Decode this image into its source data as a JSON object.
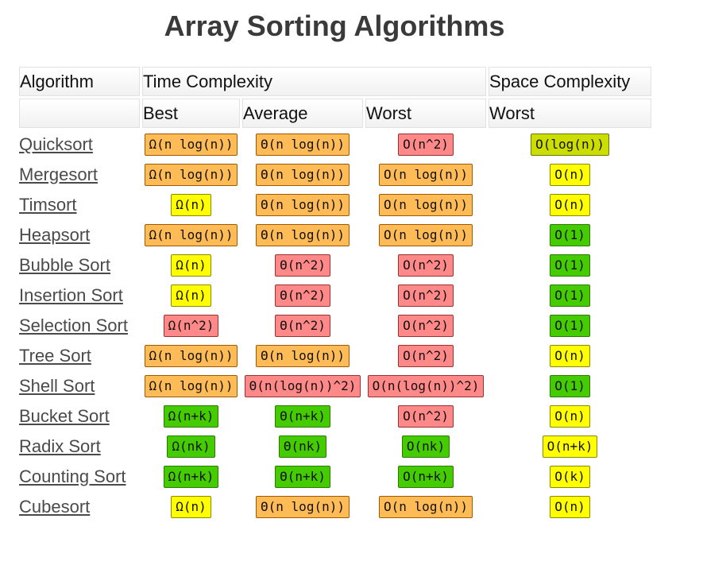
{
  "title": "Array Sorting Algorithms",
  "headers": {
    "algorithm": "Algorithm",
    "time_complexity": "Time Complexity",
    "space_complexity": "Space Complexity",
    "best": "Best",
    "average": "Average",
    "worst": "Worst",
    "space_worst": "Worst"
  },
  "colors": {
    "bad": "#ff8888",
    "fair": "#ffbb55",
    "good": "#ffff00",
    "great": "#44cc00",
    "ok": "#ccdd00"
  },
  "rows": [
    {
      "name": "Quicksort",
      "best": {
        "v": "Ω(n log(n))",
        "c": "fair"
      },
      "average": {
        "v": "Θ(n log(n))",
        "c": "fair"
      },
      "worst": {
        "v": "O(n^2)",
        "c": "bad"
      },
      "space": {
        "v": "O(log(n))",
        "c": "ok"
      }
    },
    {
      "name": "Mergesort",
      "best": {
        "v": "Ω(n log(n))",
        "c": "fair"
      },
      "average": {
        "v": "Θ(n log(n))",
        "c": "fair"
      },
      "worst": {
        "v": "O(n log(n))",
        "c": "fair"
      },
      "space": {
        "v": "O(n)",
        "c": "good"
      }
    },
    {
      "name": "Timsort",
      "best": {
        "v": "Ω(n)",
        "c": "good"
      },
      "average": {
        "v": "Θ(n log(n))",
        "c": "fair"
      },
      "worst": {
        "v": "O(n log(n))",
        "c": "fair"
      },
      "space": {
        "v": "O(n)",
        "c": "good"
      }
    },
    {
      "name": "Heapsort",
      "best": {
        "v": "Ω(n log(n))",
        "c": "fair"
      },
      "average": {
        "v": "Θ(n log(n))",
        "c": "fair"
      },
      "worst": {
        "v": "O(n log(n))",
        "c": "fair"
      },
      "space": {
        "v": "O(1)",
        "c": "great"
      }
    },
    {
      "name": "Bubble Sort",
      "best": {
        "v": "Ω(n)",
        "c": "good"
      },
      "average": {
        "v": "Θ(n^2)",
        "c": "bad"
      },
      "worst": {
        "v": "O(n^2)",
        "c": "bad"
      },
      "space": {
        "v": "O(1)",
        "c": "great"
      }
    },
    {
      "name": "Insertion Sort",
      "best": {
        "v": "Ω(n)",
        "c": "good"
      },
      "average": {
        "v": "Θ(n^2)",
        "c": "bad"
      },
      "worst": {
        "v": "O(n^2)",
        "c": "bad"
      },
      "space": {
        "v": "O(1)",
        "c": "great"
      }
    },
    {
      "name": "Selection Sort",
      "best": {
        "v": "Ω(n^2)",
        "c": "bad"
      },
      "average": {
        "v": "Θ(n^2)",
        "c": "bad"
      },
      "worst": {
        "v": "O(n^2)",
        "c": "bad"
      },
      "space": {
        "v": "O(1)",
        "c": "great"
      }
    },
    {
      "name": "Tree Sort",
      "best": {
        "v": "Ω(n log(n))",
        "c": "fair"
      },
      "average": {
        "v": "Θ(n log(n))",
        "c": "fair"
      },
      "worst": {
        "v": "O(n^2)",
        "c": "bad"
      },
      "space": {
        "v": "O(n)",
        "c": "good"
      }
    },
    {
      "name": "Shell Sort",
      "best": {
        "v": "Ω(n log(n))",
        "c": "fair"
      },
      "average": {
        "v": "Θ(n(log(n))^2)",
        "c": "bad"
      },
      "worst": {
        "v": "O(n(log(n))^2)",
        "c": "bad"
      },
      "space": {
        "v": "O(1)",
        "c": "great"
      }
    },
    {
      "name": "Bucket Sort",
      "best": {
        "v": "Ω(n+k)",
        "c": "great"
      },
      "average": {
        "v": "Θ(n+k)",
        "c": "great"
      },
      "worst": {
        "v": "O(n^2)",
        "c": "bad"
      },
      "space": {
        "v": "O(n)",
        "c": "good"
      }
    },
    {
      "name": "Radix Sort",
      "best": {
        "v": "Ω(nk)",
        "c": "great"
      },
      "average": {
        "v": "Θ(nk)",
        "c": "great"
      },
      "worst": {
        "v": "O(nk)",
        "c": "great"
      },
      "space": {
        "v": "O(n+k)",
        "c": "good"
      }
    },
    {
      "name": "Counting Sort",
      "best": {
        "v": "Ω(n+k)",
        "c": "great"
      },
      "average": {
        "v": "Θ(n+k)",
        "c": "great"
      },
      "worst": {
        "v": "O(n+k)",
        "c": "great"
      },
      "space": {
        "v": "O(k)",
        "c": "good"
      }
    },
    {
      "name": "Cubesort",
      "best": {
        "v": "Ω(n)",
        "c": "good"
      },
      "average": {
        "v": "Θ(n log(n))",
        "c": "fair"
      },
      "worst": {
        "v": "O(n log(n))",
        "c": "fair"
      },
      "space": {
        "v": "O(n)",
        "c": "good"
      }
    }
  ]
}
